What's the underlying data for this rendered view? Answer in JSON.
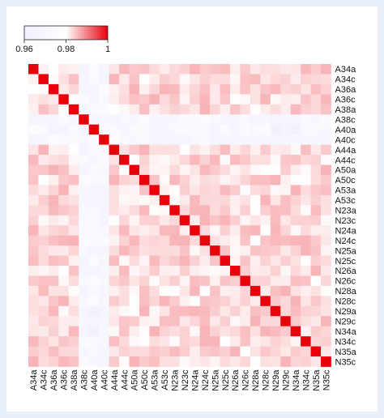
{
  "chart_data": {
    "type": "heatmap",
    "title": "",
    "xlabel": "",
    "ylabel": "",
    "labels": [
      "A34a",
      "A34c",
      "A36a",
      "A36c",
      "A38a",
      "A38c",
      "A40a",
      "A40c",
      "A44a",
      "A44c",
      "A50a",
      "A50c",
      "A53a",
      "A53c",
      "N23a",
      "N23c",
      "N24a",
      "N24c",
      "N25a",
      "N25c",
      "N26a",
      "N26c",
      "N28a",
      "N28c",
      "N29a",
      "N29c",
      "N34a",
      "N34c",
      "N35a",
      "N35c"
    ],
    "colorbar": {
      "min": 0.96,
      "max": 1,
      "ticks": [
        {
          "value": 0.96,
          "label": "0.96"
        },
        {
          "value": 0.98,
          "label": "0.98"
        },
        {
          "value": 1,
          "label": "1"
        }
      ],
      "low_color": "#f0f0ff",
      "mid_color": "#ffffff",
      "high_color": "#e8000b"
    },
    "diagonal_value": 1,
    "typical_offdiagonal_value": 0.983,
    "low_similarity_labels": [
      "A38c",
      "A40a",
      "A40c"
    ],
    "low_similarity_value": 0.97,
    "minimum_value": 0.962
  }
}
